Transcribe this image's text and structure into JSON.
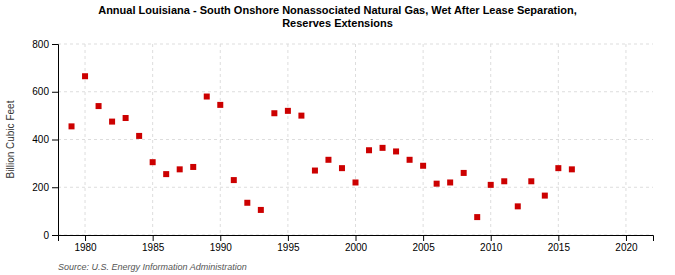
{
  "chart_data": {
    "type": "scatter",
    "title": "Annual Louisiana - South Onshore Nonassociated Natural Gas, Wet After Lease Separation,\nReserves Extensions",
    "ylabel": "Billion Cubic Feet",
    "annotations": [
      "Source: U.S. Energy Information Administration"
    ],
    "x": [
      1979,
      1980,
      1981,
      1982,
      1983,
      1984,
      1985,
      1986,
      1987,
      1988,
      1989,
      1990,
      1991,
      1992,
      1993,
      1994,
      1995,
      1996,
      1997,
      1998,
      1999,
      2000,
      2001,
      2002,
      2003,
      2004,
      2005,
      2006,
      2007,
      2008,
      2009,
      2010,
      2011,
      2012,
      2013,
      2014,
      2015,
      2016
    ],
    "values": [
      455,
      665,
      540,
      475,
      490,
      415,
      305,
      255,
      275,
      285,
      580,
      545,
      230,
      135,
      105,
      510,
      520,
      500,
      270,
      315,
      280,
      220,
      355,
      365,
      350,
      315,
      290,
      215,
      220,
      260,
      75,
      210,
      225,
      120,
      225,
      165,
      280,
      275
    ],
    "color": "#cc0000",
    "marker": "square",
    "xlim": [
      1978,
      2022
    ],
    "ylim": [
      0,
      800
    ],
    "xticks": [
      1980,
      1985,
      1990,
      1995,
      2000,
      2005,
      2010,
      2015,
      2020
    ],
    "yticks": [
      0,
      200,
      400,
      600,
      800
    ],
    "grid": true
  }
}
